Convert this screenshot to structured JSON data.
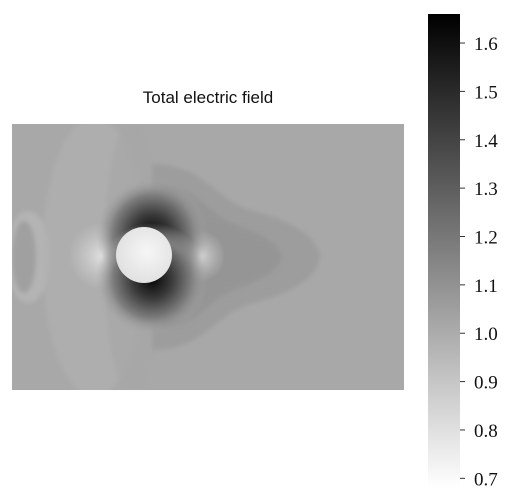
{
  "chart_data": {
    "type": "heatmap",
    "title": "Total electric field",
    "colormap": "gray (high = black, low = white)",
    "colorbar": {
      "ticks": [
        "1.6",
        "1.5",
        "1.4",
        "1.3",
        "1.2",
        "1.1",
        "1.0",
        "0.9",
        "0.8",
        "0.7"
      ],
      "range": [
        0.68,
        1.66
      ]
    },
    "field_description": {
      "background_level": 1.0,
      "cylinder_interior_level": 0.74,
      "max_level_top_bottom_of_cylinder": 1.62,
      "min_level_left_right_of_cylinder": 0.8
    }
  }
}
